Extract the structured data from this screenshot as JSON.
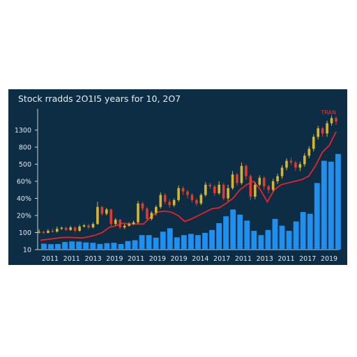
{
  "chart_data": {
    "type": "bar",
    "title": "Stock rradds 2O1I5 years for 10, 2O7",
    "xlabel": "",
    "ylabel": "",
    "ytick_labels": [
      "10",
      "100",
      "20%",
      "40%",
      "60%",
      "500",
      "800",
      "1300"
    ],
    "xtick_labels": [
      "2011",
      "2011",
      "2013",
      "2019",
      "2011",
      "2019",
      "2019",
      "2014",
      "2017",
      "2011",
      "2013",
      "2011",
      "2017",
      "2019"
    ],
    "annotation": "TRAN",
    "ylim": [
      0,
      8
    ],
    "grid": false,
    "legend": "none",
    "colors": {
      "background": "#0c2d44",
      "bars": "#1f8ff0",
      "line": "#e8222b",
      "up": "#d7b62e",
      "down": "#e23b2b",
      "text": "#e3e9ee",
      "axis": "#c9d3da"
    },
    "series": [
      {
        "type": "bar",
        "values": [
          0.35,
          0.32,
          0.33,
          0.45,
          0.48,
          0.47,
          0.42,
          0.4,
          0.33,
          0.38,
          0.4,
          0.33,
          0.5,
          0.55,
          0.85,
          0.85,
          0.7,
          1.05,
          1.25,
          0.72,
          0.85,
          0.92,
          0.85,
          0.98,
          1.15,
          1.55,
          1.95,
          2.35,
          2.05,
          1.7,
          1.1,
          0.85,
          1.15,
          1.8,
          1.4,
          1.1,
          1.65,
          2.2,
          2.1,
          3.9,
          5.2,
          5.15,
          5.6
        ]
      },
      {
        "type": "line",
        "values": [
          0.55,
          0.6,
          0.65,
          0.7,
          0.72,
          0.7,
          0.68,
          0.75,
          0.85,
          1.0,
          1.3,
          1.4,
          1.55,
          1.5,
          1.5,
          1.5,
          1.9,
          2.2,
          2.25,
          2.2,
          2.0,
          1.65,
          1.8,
          2.0,
          2.2,
          2.4,
          2.45,
          2.7,
          3.0,
          3.5,
          3.8,
          4.0,
          3.5,
          2.8,
          3.5,
          3.8,
          3.9,
          4.0,
          4.1,
          4.3,
          4.9,
          5.7,
          6.1,
          6.9
        ]
      },
      {
        "type": "candlestick",
        "close": [
          1.05,
          0.98,
          1.1,
          1.05,
          1.22,
          1.28,
          1.15,
          1.3,
          1.1,
          1.35,
          1.42,
          1.3,
          1.5,
          2.5,
          2.1,
          2.35,
          1.5,
          1.75,
          1.3,
          1.4,
          1.5,
          1.6,
          2.7,
          2.4,
          1.8,
          2.15,
          2.5,
          3.2,
          2.8,
          2.6,
          2.9,
          3.6,
          3.4,
          3.2,
          2.9,
          2.7,
          3.2,
          3.8,
          3.7,
          3.3,
          3.8,
          3.0,
          3.6,
          4.4,
          3.9,
          4.9,
          4.3,
          3.1,
          3.8,
          4.2,
          3.7,
          3.5,
          4.0,
          4.3,
          4.8,
          5.2,
          5.1,
          4.8,
          5.0,
          5.5,
          5.9,
          6.6,
          7.1,
          6.8,
          7.4,
          7.7,
          7.5
        ],
        "high": [
          1.2,
          1.1,
          1.2,
          1.25,
          1.35,
          1.35,
          1.33,
          1.4,
          1.35,
          1.45,
          1.5,
          1.5,
          1.6,
          2.8,
          2.55,
          2.45,
          2.4,
          1.85,
          1.8,
          1.5,
          1.6,
          1.7,
          2.85,
          2.8,
          2.5,
          2.25,
          2.6,
          3.35,
          3.3,
          2.95,
          3.0,
          3.75,
          3.7,
          3.5,
          3.3,
          3.0,
          3.3,
          3.95,
          3.9,
          3.8,
          4.0,
          3.9,
          3.8,
          4.6,
          4.5,
          5.1,
          5.0,
          4.4,
          3.95,
          4.35,
          4.3,
          3.8,
          4.15,
          4.45,
          4.95,
          5.35,
          5.4,
          5.2,
          5.15,
          5.65,
          6.05,
          6.75,
          7.25,
          7.2,
          7.55,
          7.85,
          7.8
        ],
        "low": [
          0.95,
          0.9,
          0.95,
          1.0,
          1.0,
          1.15,
          1.1,
          1.1,
          1.0,
          1.05,
          1.3,
          1.2,
          1.25,
          1.45,
          2.0,
          2.0,
          1.35,
          1.4,
          1.2,
          1.2,
          1.35,
          1.45,
          1.5,
          2.25,
          1.7,
          1.7,
          2.0,
          2.4,
          2.65,
          2.45,
          2.5,
          2.8,
          3.2,
          3.0,
          2.75,
          2.55,
          2.6,
          3.1,
          3.55,
          3.15,
          3.2,
          2.9,
          2.85,
          3.5,
          3.75,
          3.8,
          4.1,
          2.9,
          2.95,
          3.7,
          3.5,
          3.3,
          3.4,
          3.85,
          4.15,
          4.65,
          4.95,
          4.6,
          4.6,
          4.85,
          5.35,
          5.75,
          6.45,
          6.6,
          6.6,
          7.25,
          7.3
        ]
      }
    ]
  }
}
